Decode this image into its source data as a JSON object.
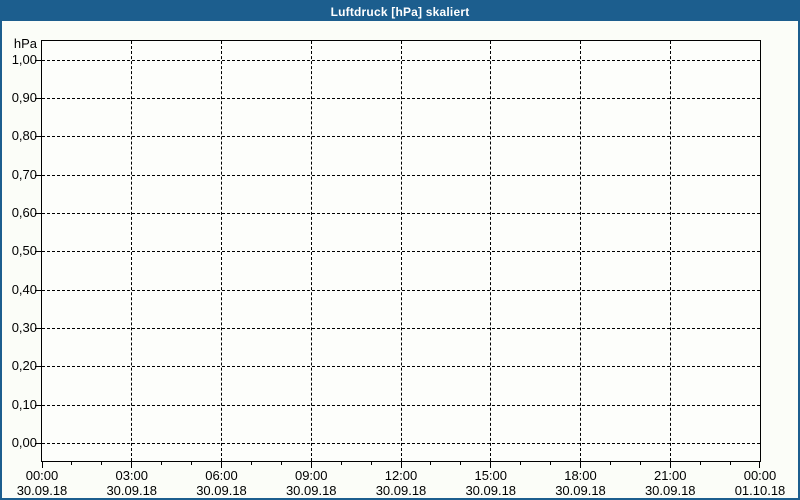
{
  "window": {
    "title": "Luftdruck [hPa] skaliert"
  },
  "colors": {
    "titlebar": "#1c5e8e",
    "titlebar_text": "#ffffff",
    "window_border": "#1c5e8e",
    "background": "#fbfdf8",
    "plot_background": "#fdfefb",
    "grid": "#000000",
    "text": "#000000"
  },
  "chart_data": {
    "type": "line",
    "title": "Luftdruck [hPa] skaliert",
    "ylabel": "hPa",
    "xlabel": "",
    "ylim": [
      0.0,
      1.0
    ],
    "y_tick_step": 0.1,
    "x_axis": {
      "start": "30.09.18 00:00",
      "end": "01.10.18 00:00",
      "major_tick_hours": 3,
      "minor_tick_hours": 1
    },
    "grid": "dashed",
    "legend": null,
    "y_ticks": [
      {
        "value": 1.0,
        "label": "1,00"
      },
      {
        "value": 0.9,
        "label": "0,90"
      },
      {
        "value": 0.8,
        "label": "0,80"
      },
      {
        "value": 0.7,
        "label": "0,70"
      },
      {
        "value": 0.6,
        "label": "0,60"
      },
      {
        "value": 0.5,
        "label": "0,50"
      },
      {
        "value": 0.4,
        "label": "0,40"
      },
      {
        "value": 0.3,
        "label": "0,30"
      },
      {
        "value": 0.2,
        "label": "0,20"
      },
      {
        "value": 0.1,
        "label": "0,10"
      },
      {
        "value": 0.0,
        "label": "0,00"
      }
    ],
    "x_ticks": [
      {
        "hour": 0,
        "time": "00:00",
        "date": "30.09.18"
      },
      {
        "hour": 3,
        "time": "03:00",
        "date": "30.09.18"
      },
      {
        "hour": 6,
        "time": "06:00",
        "date": "30.09.18"
      },
      {
        "hour": 9,
        "time": "09:00",
        "date": "30.09.18"
      },
      {
        "hour": 12,
        "time": "12:00",
        "date": "30.09.18"
      },
      {
        "hour": 15,
        "time": "15:00",
        "date": "30.09.18"
      },
      {
        "hour": 18,
        "time": "18:00",
        "date": "30.09.18"
      },
      {
        "hour": 21,
        "time": "21:00",
        "date": "30.09.18"
      },
      {
        "hour": 24,
        "time": "00:00",
        "date": "01.10.18"
      }
    ],
    "series": []
  }
}
